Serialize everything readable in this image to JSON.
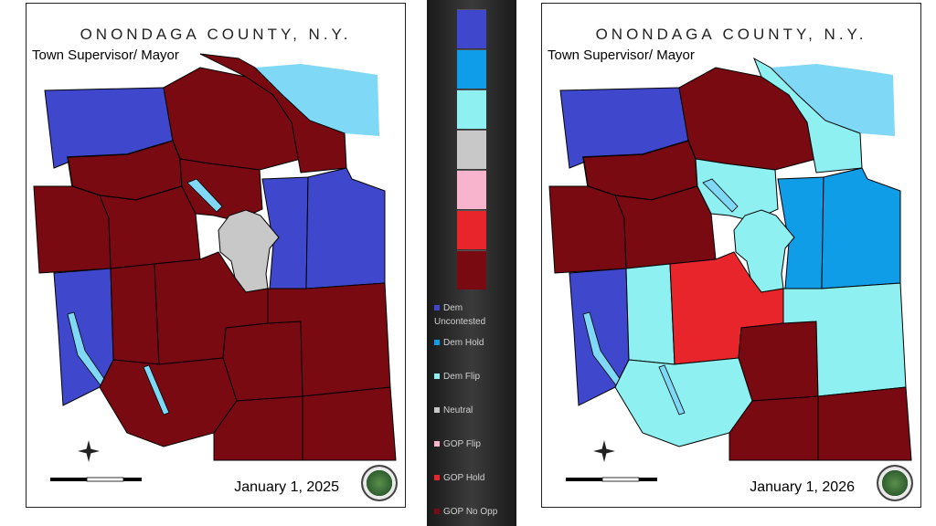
{
  "colors": {
    "dem_uncontested": "#3f48cc",
    "dem_hold": "#0f9de8",
    "dem_flip": "#8ef0f0",
    "neutral": "#c8c8c8",
    "gop_flip": "#f8b4cc",
    "gop_hold": "#e8252a",
    "gop_no_opp": "#7a0a12",
    "lake": "#7fd8f6"
  },
  "left_panel": {
    "county_title": "ONONDAGA COUNTY, N.Y.",
    "office_title": "Town Supervisor/ Mayor",
    "date": "January 1, 2025"
  },
  "right_panel": {
    "county_title": "ONONDAGA COUNTY, N.Y.",
    "office_title": "Town Supervisor/ Mayor",
    "date": "January 1, 2026"
  },
  "legend": {
    "items": [
      {
        "label": "Dem Uncontested",
        "color": "#3f48cc"
      },
      {
        "label": "Dem Hold",
        "color": "#0f9de8"
      },
      {
        "label": "Dem Flip",
        "color": "#8ef0f0"
      },
      {
        "label": "Neutral",
        "color": "#c8c8c8"
      },
      {
        "label": "GOP Flip",
        "color": "#f8b4cc"
      },
      {
        "label": "GOP Hold",
        "color": "#e8252a"
      },
      {
        "label": "GOP No Opp",
        "color": "#7a0a12"
      }
    ]
  }
}
